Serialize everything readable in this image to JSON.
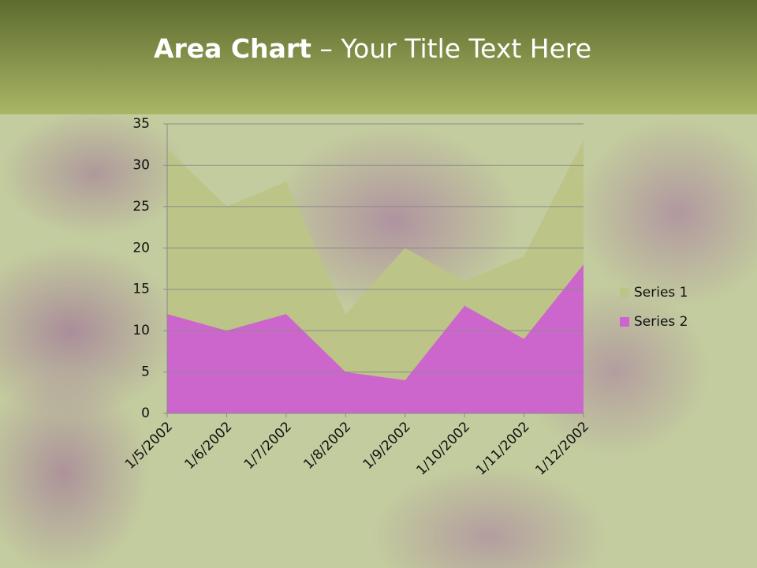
{
  "slide": {
    "title_bold": "Area Chart",
    "title_rest": "– Your Title Text Here"
  },
  "chart_data": {
    "type": "area",
    "categories": [
      "1/5/2002",
      "1/6/2002",
      "1/7/2002",
      "1/8/2002",
      "1/9/2002",
      "1/10/2002",
      "1/11/2002",
      "1/12/2002"
    ],
    "series": [
      {
        "name": "Series 1",
        "color": "#bcc487",
        "values": [
          32,
          25,
          28,
          12,
          20,
          16,
          19,
          33
        ]
      },
      {
        "name": "Series 2",
        "color": "#cc66cc",
        "values": [
          12,
          10,
          12,
          5,
          4,
          13,
          9,
          18
        ]
      }
    ],
    "ylim": [
      0,
      35
    ],
    "yticks": [
      0,
      5,
      10,
      15,
      20,
      25,
      30,
      35
    ],
    "grid": true,
    "legend": "right"
  }
}
